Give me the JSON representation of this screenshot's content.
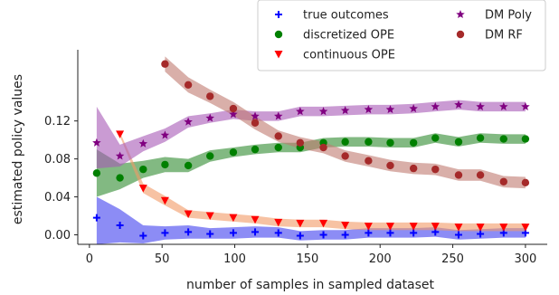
{
  "chart_data": {
    "type": "line",
    "title": "",
    "xlabel": "number of samples in sampled dataset",
    "ylabel": "estimated policy values",
    "xlim": [
      -8,
      315
    ],
    "ylim": [
      -0.01,
      0.195
    ],
    "xticks": [
      0,
      50,
      100,
      150,
      200,
      250,
      300
    ],
    "yticks": [
      0.0,
      0.04,
      0.08,
      0.12
    ],
    "ytick_labels": [
      "0.00",
      "0.04",
      "0.08",
      "0.12"
    ],
    "grid": false,
    "legend_position": "top-right",
    "series": [
      {
        "name": "true outcomes",
        "marker": "plus",
        "color": "#0000ff",
        "band_color": "#4040ee",
        "x": [
          5,
          21,
          37,
          52,
          68,
          83,
          99,
          114,
          130,
          145,
          161,
          176,
          192,
          207,
          223,
          238,
          254,
          269,
          285,
          300
        ],
        "y": [
          0.018,
          0.01,
          -0.001,
          0.002,
          0.003,
          0.001,
          0.002,
          0.003,
          0.002,
          -0.001,
          0.0,
          0.0,
          0.002,
          0.002,
          0.002,
          0.003,
          0.0,
          0.001,
          0.002,
          0.002
        ],
        "band": [
          [
            0.04,
            -0.01
          ],
          [
            0.027,
            -0.008
          ],
          [
            0.01,
            -0.009
          ],
          [
            0.009,
            -0.005
          ],
          [
            0.01,
            -0.004
          ],
          [
            0.007,
            -0.004
          ],
          [
            0.008,
            -0.004
          ],
          [
            0.009,
            -0.003
          ],
          [
            0.008,
            -0.003
          ],
          [
            0.004,
            -0.006
          ],
          [
            0.005,
            -0.005
          ],
          [
            0.005,
            -0.005
          ],
          [
            0.007,
            -0.003
          ],
          [
            0.007,
            -0.003
          ],
          [
            0.007,
            -0.003
          ],
          [
            0.008,
            -0.002
          ],
          [
            0.005,
            -0.005
          ],
          [
            0.006,
            -0.004
          ],
          [
            0.007,
            -0.003
          ],
          [
            0.007,
            -0.003
          ]
        ]
      },
      {
        "name": "discretized OPE",
        "marker": "circle",
        "color": "#008000",
        "band_color": "#2e8b2e",
        "x": [
          5,
          21,
          37,
          52,
          68,
          83,
          99,
          114,
          130,
          145,
          161,
          176,
          192,
          207,
          223,
          238,
          254,
          269,
          285,
          300
        ],
        "y": [
          0.065,
          0.06,
          0.069,
          0.074,
          0.073,
          0.083,
          0.087,
          0.09,
          0.092,
          0.092,
          0.097,
          0.098,
          0.098,
          0.097,
          0.097,
          0.102,
          0.098,
          0.102,
          0.101,
          0.101
        ],
        "band": [
          [
            0.09,
            0.04
          ],
          [
            0.075,
            0.048
          ],
          [
            0.078,
            0.06
          ],
          [
            0.082,
            0.066
          ],
          [
            0.08,
            0.066
          ],
          [
            0.089,
            0.077
          ],
          [
            0.092,
            0.082
          ],
          [
            0.095,
            0.085
          ],
          [
            0.097,
            0.087
          ],
          [
            0.097,
            0.087
          ],
          [
            0.102,
            0.092
          ],
          [
            0.103,
            0.093
          ],
          [
            0.103,
            0.093
          ],
          [
            0.102,
            0.092
          ],
          [
            0.102,
            0.092
          ],
          [
            0.107,
            0.097
          ],
          [
            0.103,
            0.093
          ],
          [
            0.107,
            0.097
          ],
          [
            0.106,
            0.096
          ],
          [
            0.106,
            0.096
          ]
        ]
      },
      {
        "name": "continuous OPE",
        "marker": "triangle-down",
        "color": "#ff0000",
        "band_color": "#f29a66",
        "x": [
          21,
          37,
          52,
          68,
          83,
          99,
          114,
          130,
          145,
          161,
          176,
          192,
          207,
          223,
          238,
          254,
          269,
          285,
          300
        ],
        "y": [
          0.106,
          0.049,
          0.036,
          0.022,
          0.02,
          0.018,
          0.016,
          0.013,
          0.012,
          0.012,
          0.01,
          0.009,
          0.009,
          0.009,
          0.009,
          0.008,
          0.008,
          0.008,
          0.008
        ],
        "band": [
          [
            0.108,
            0.104
          ],
          [
            0.054,
            0.044
          ],
          [
            0.041,
            0.031
          ],
          [
            0.026,
            0.018
          ],
          [
            0.024,
            0.016
          ],
          [
            0.022,
            0.014
          ],
          [
            0.02,
            0.012
          ],
          [
            0.017,
            0.009
          ],
          [
            0.016,
            0.008
          ],
          [
            0.016,
            0.008
          ],
          [
            0.014,
            0.006
          ],
          [
            0.013,
            0.005
          ],
          [
            0.013,
            0.005
          ],
          [
            0.013,
            0.005
          ],
          [
            0.013,
            0.005
          ],
          [
            0.012,
            0.004
          ],
          [
            0.012,
            0.004
          ],
          [
            0.012,
            0.004
          ],
          [
            0.012,
            0.004
          ]
        ]
      },
      {
        "name": "DM Poly",
        "marker": "star",
        "color": "#800080",
        "band_color": "#a659b6",
        "x": [
          5,
          21,
          37,
          52,
          68,
          83,
          99,
          114,
          130,
          145,
          161,
          176,
          192,
          207,
          223,
          238,
          254,
          269,
          285,
          300
        ],
        "y": [
          0.097,
          0.083,
          0.096,
          0.105,
          0.119,
          0.123,
          0.127,
          0.125,
          0.125,
          0.13,
          0.13,
          0.131,
          0.132,
          0.132,
          0.133,
          0.135,
          0.137,
          0.135,
          0.135,
          0.135
        ],
        "band": [
          [
            0.135,
            0.07
          ],
          [
            0.095,
            0.072
          ],
          [
            0.104,
            0.088
          ],
          [
            0.112,
            0.098
          ],
          [
            0.125,
            0.113
          ],
          [
            0.128,
            0.118
          ],
          [
            0.132,
            0.122
          ],
          [
            0.13,
            0.12
          ],
          [
            0.13,
            0.12
          ],
          [
            0.135,
            0.125
          ],
          [
            0.135,
            0.125
          ],
          [
            0.136,
            0.126
          ],
          [
            0.137,
            0.127
          ],
          [
            0.137,
            0.127
          ],
          [
            0.138,
            0.128
          ],
          [
            0.14,
            0.13
          ],
          [
            0.142,
            0.132
          ],
          [
            0.14,
            0.13
          ],
          [
            0.14,
            0.13
          ],
          [
            0.14,
            0.13
          ]
        ]
      },
      {
        "name": "DM RF",
        "marker": "circle",
        "color": "#a52a2a",
        "band_color": "#c07a70",
        "x": [
          52,
          68,
          83,
          99,
          114,
          130,
          145,
          161,
          176,
          192,
          207,
          223,
          238,
          254,
          269,
          285,
          300
        ],
        "y": [
          0.18,
          0.158,
          0.146,
          0.133,
          0.118,
          0.104,
          0.097,
          0.092,
          0.083,
          0.078,
          0.073,
          0.07,
          0.069,
          0.063,
          0.063,
          0.056,
          0.055
        ],
        "band": [
          [
            0.188,
            0.172
          ],
          [
            0.166,
            0.15
          ],
          [
            0.153,
            0.139
          ],
          [
            0.14,
            0.126
          ],
          [
            0.125,
            0.111
          ],
          [
            0.11,
            0.098
          ],
          [
            0.103,
            0.091
          ],
          [
            0.098,
            0.086
          ],
          [
            0.089,
            0.077
          ],
          [
            0.084,
            0.072
          ],
          [
            0.079,
            0.067
          ],
          [
            0.076,
            0.064
          ],
          [
            0.075,
            0.063
          ],
          [
            0.069,
            0.057
          ],
          [
            0.069,
            0.057
          ],
          [
            0.062,
            0.05
          ],
          [
            0.061,
            0.049
          ]
        ]
      }
    ]
  }
}
